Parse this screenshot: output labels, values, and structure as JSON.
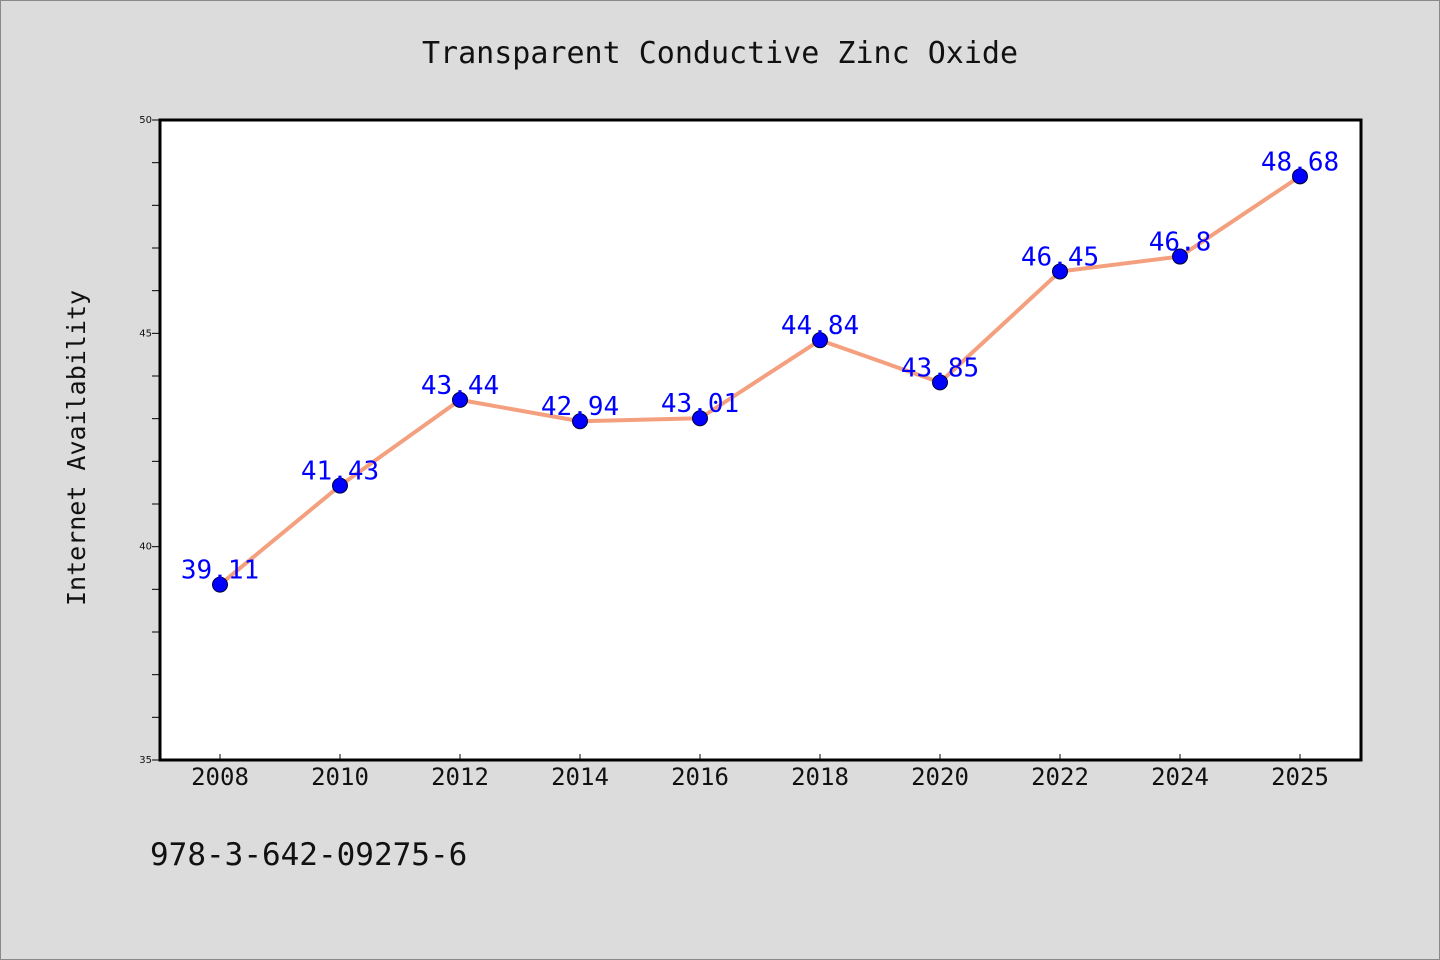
{
  "chart_data": {
    "type": "line",
    "title": "Transparent Conductive Zinc Oxide",
    "xlabel": "",
    "ylabel": "Internet Availability",
    "categories": [
      "2008",
      "2010",
      "2012",
      "2014",
      "2016",
      "2018",
      "2020",
      "2022",
      "2024",
      "2025"
    ],
    "series": [
      {
        "values": [
          39.11,
          41.43,
          43.44,
          42.94,
          43.01,
          44.84,
          43.85,
          46.45,
          46.8,
          48.68
        ],
        "data_labels": [
          "39.11",
          "41.43",
          "43.44",
          "42.94",
          "43.01",
          "44.84",
          "43.85",
          "46.45",
          "46.8",
          "48.68"
        ],
        "line_color": "#f4a07e",
        "marker_color": "#0000ff"
      }
    ],
    "ylim": [
      35,
      50
    ],
    "y_ticks": [
      "35",
      "40",
      "45",
      "50"
    ],
    "grid": false,
    "legend": "none"
  },
  "footer_text": "978-3-642-09275-6",
  "colors": {
    "background": "#dcdcdc",
    "plot_background": "#ffffff",
    "data_label": "#0000ff"
  }
}
